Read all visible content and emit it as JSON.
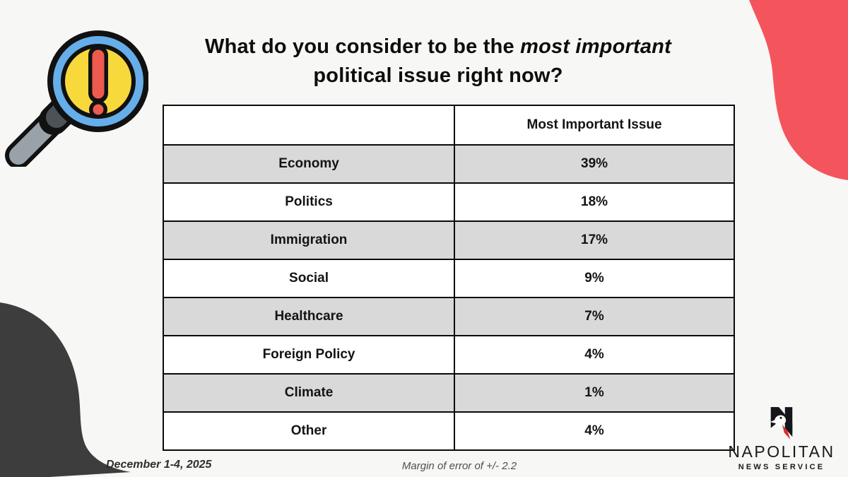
{
  "title": {
    "line1_normal": "What do you consider to be the ",
    "line1_italic": "most important",
    "line2": "political issue right now?"
  },
  "table": {
    "header": {
      "col1": "",
      "col2": "Most Important Issue"
    },
    "rows": [
      [
        "Economy",
        "39%"
      ],
      [
        "Politics",
        "18%"
      ],
      [
        "Immigration",
        "17%"
      ],
      [
        "Social",
        "9%"
      ],
      [
        "Healthcare",
        "7%"
      ],
      [
        "Foreign Policy",
        "4%"
      ],
      [
        "Climate",
        "1%"
      ],
      [
        "Other",
        "4%"
      ]
    ]
  },
  "footer": {
    "date_range": "December 1-4, 2025",
    "margin_note": "Margin of error of +/- 2.2"
  },
  "logo": {
    "name": "NAPOLITAN",
    "tagline": "NEWS SERVICE"
  },
  "icons": {
    "top_left": "magnifying-glass-alert-icon",
    "logo_mark": "napolitan-eagle-n-icon"
  },
  "colors": {
    "background": "#f7f7f5",
    "accent_red_blob": "#f4555c",
    "dark_blob": "#3d3d3d",
    "row_gray": "#d9d9d9",
    "table_border": "#0a0a0a",
    "magnifier_blue": "#66aee9",
    "magnifier_yellow": "#f8d93c",
    "alert_red": "#ef5a4e",
    "logo_red": "#e0272e"
  },
  "chart_data": {
    "type": "table",
    "title": "What do you consider to be the most important political issue right now?",
    "columns": [
      "",
      "Most Important Issue"
    ],
    "categories": [
      "Economy",
      "Politics",
      "Immigration",
      "Social",
      "Healthcare",
      "Foreign Policy",
      "Climate",
      "Other"
    ],
    "values": [
      39,
      18,
      17,
      9,
      7,
      4,
      1,
      4
    ],
    "value_unit": "percent",
    "footnote": "Margin of error of +/- 2.2",
    "date_range": "December 1-4, 2025",
    "source": "NAPOLITAN NEWS SERVICE"
  }
}
